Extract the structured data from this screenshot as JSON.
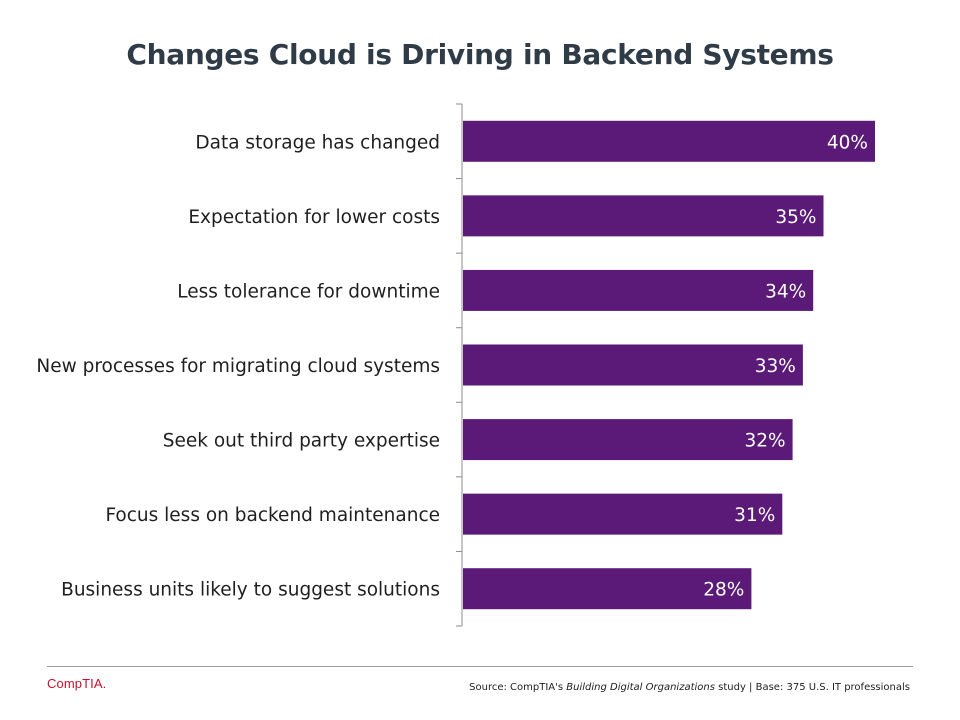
{
  "colors": {
    "bar": "#5b1a77",
    "title": "#2f3c48",
    "axis": "#8c8c8c",
    "brand": "#c8102e"
  },
  "chart_data": {
    "type": "bar",
    "orientation": "horizontal",
    "title": "Changes Cloud is Driving in Backend Systems",
    "categories": [
      "Data storage has changed",
      "Expectation for lower costs",
      "Less tolerance for downtime",
      "New processes for migrating cloud systems",
      "Seek out third party expertise",
      "Focus less on backend maintenance",
      "Business units likely to suggest solutions"
    ],
    "values": [
      40,
      35,
      34,
      33,
      32,
      31,
      28
    ],
    "value_labels": [
      "40%",
      "35%",
      "34%",
      "33%",
      "32%",
      "31%",
      "28%"
    ],
    "unit": "%",
    "xlim": [
      0,
      40
    ],
    "grid": false,
    "legend": "none"
  },
  "footer": {
    "brand": "CompTIA.",
    "source_prefix": "Source: CompTIA's ",
    "source_study": "Building Digital Organizations",
    "source_suffix": " study | Base: 375 U.S. IT professionals"
  }
}
